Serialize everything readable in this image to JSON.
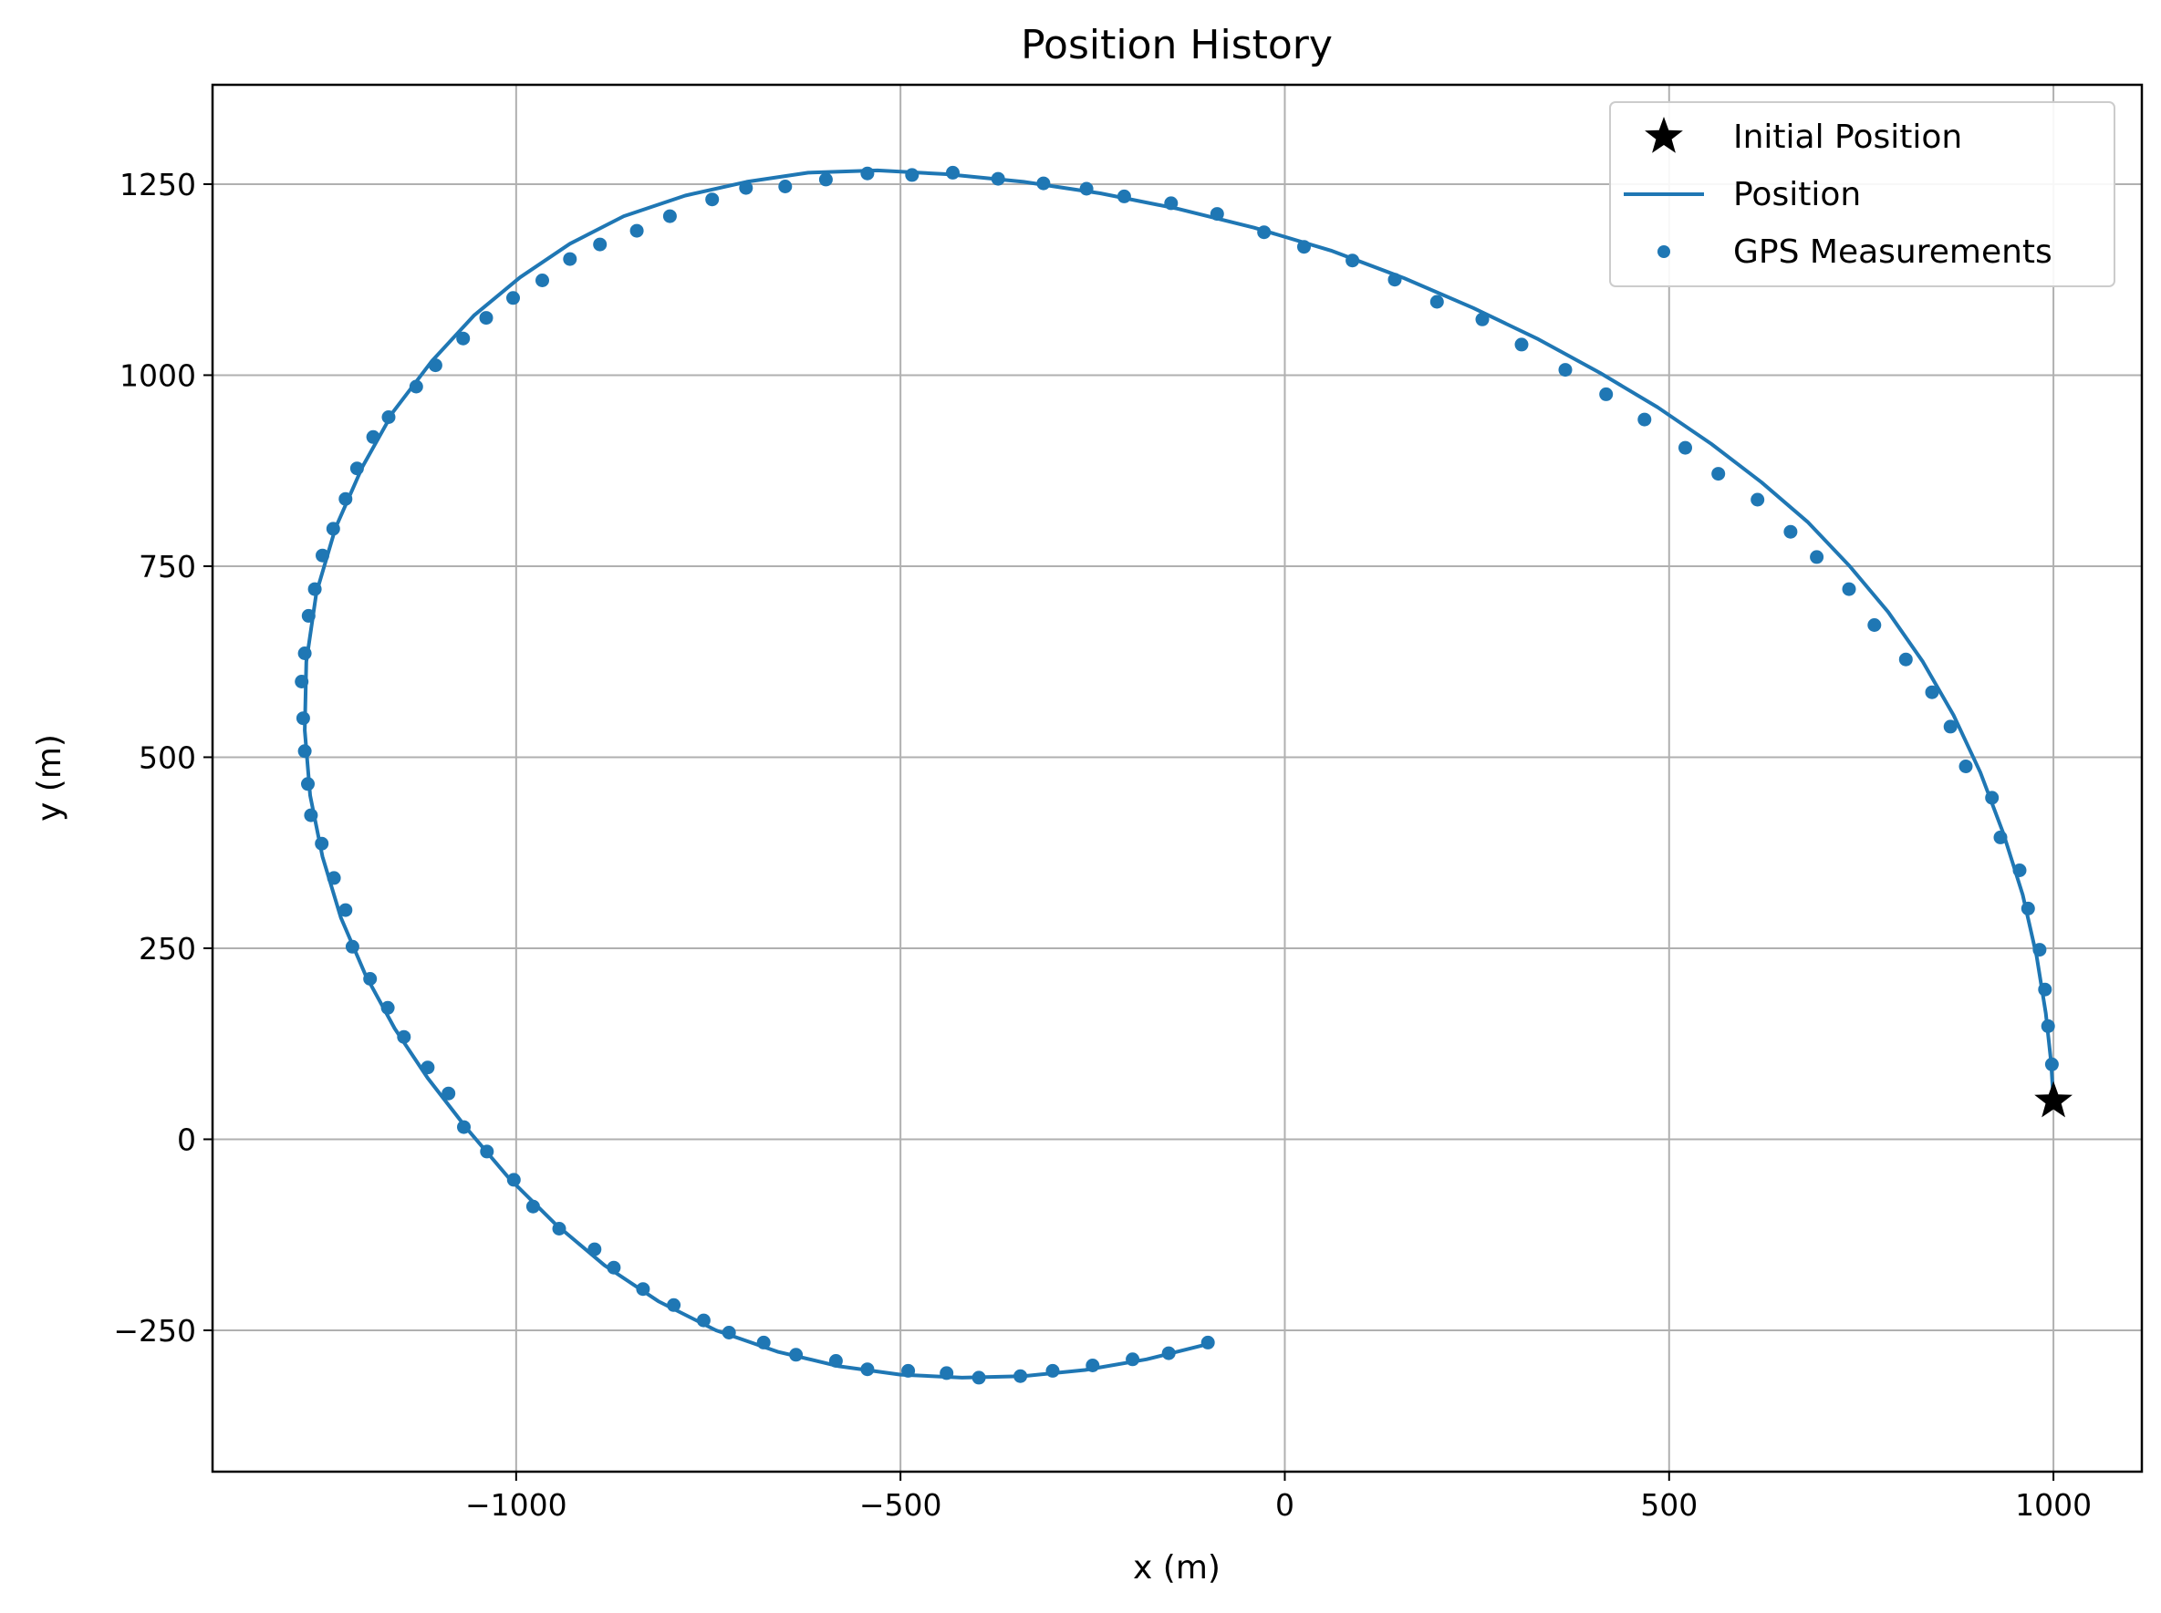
{
  "chart_data": {
    "type": "line",
    "title": "Position History",
    "xlabel": "x (m)",
    "ylabel": "y (m)",
    "xlim": [
      -1395,
      1115
    ],
    "ylim": [
      -435,
      1380
    ],
    "xticks": [
      -1000,
      -500,
      0,
      500,
      1000
    ],
    "yticks": [
      -250,
      0,
      250,
      500,
      750,
      1000,
      1250
    ],
    "xtick_labels": [
      "−1000",
      "−500",
      "0",
      "500",
      "1000"
    ],
    "ytick_labels": [
      "−250",
      "0",
      "250",
      "500",
      "750",
      "1000",
      "1250"
    ],
    "grid": true,
    "legend_position": "top-right",
    "colors": {
      "series": "#1f77b4",
      "marker": "#000000",
      "grid": "#b0b0b0"
    },
    "legend": [
      {
        "label": "Initial Position",
        "kind": "star"
      },
      {
        "label": "Position",
        "kind": "line"
      },
      {
        "label": "GPS Measurements",
        "kind": "dot"
      }
    ],
    "initial_position": {
      "x": 1000,
      "y": 50
    },
    "position_track": {
      "x": [
        1000,
        997,
        990,
        978,
        960,
        935,
        905,
        870,
        830,
        785,
        735,
        680,
        620,
        555,
        485,
        410,
        330,
        245,
        155,
        60,
        -40,
        -140,
        -240,
        -340,
        -440,
        -530,
        -620,
        -700,
        -780,
        -860,
        -930,
        -995,
        -1055,
        -1110,
        -1160,
        -1200,
        -1235,
        -1260,
        -1273,
        -1275,
        -1268,
        -1252,
        -1228,
        -1196,
        -1158,
        -1115,
        -1065,
        -1010,
        -950,
        -885,
        -815,
        -740,
        -660,
        -580,
        -500,
        -420,
        -340,
        -260,
        -180,
        -100
      ],
      "y": [
        50,
        100,
        165,
        240,
        320,
        400,
        480,
        555,
        625,
        690,
        750,
        808,
        860,
        910,
        958,
        1003,
        1047,
        1088,
        1127,
        1163,
        1193,
        1218,
        1238,
        1253,
        1263,
        1268,
        1265,
        1253,
        1235,
        1208,
        1172,
        1128,
        1078,
        1018,
        952,
        880,
        800,
        715,
        625,
        535,
        450,
        370,
        290,
        215,
        145,
        80,
        15,
        -50,
        -110,
        -165,
        -212,
        -250,
        -278,
        -297,
        -308,
        -312,
        -310,
        -302,
        -288,
        -268
      ]
    },
    "gps_measurements": {
      "x": [
        998,
        993,
        989,
        982,
        967,
        956,
        931,
        920,
        886,
        866,
        842,
        808,
        767,
        734,
        692,
        658,
        615,
        564,
        521,
        468,
        418,
        365,
        308,
        257,
        198,
        143,
        88,
        25,
        -27,
        -88,
        -148,
        -209,
        -258,
        -314,
        -373,
        -432,
        -485,
        -543,
        -597,
        -650,
        -701,
        -745,
        -800,
        -843,
        -891,
        -930,
        -966,
        -1004,
        -1039,
        -1069,
        -1105,
        -1130,
        -1166,
        -1186,
        -1207,
        -1222,
        -1238,
        -1252,
        -1262,
        -1270,
        -1275,
        -1279,
        -1277,
        -1275,
        -1271,
        -1267,
        -1253,
        -1237,
        -1222,
        -1213,
        -1190,
        -1167,
        -1146,
        -1115,
        -1088,
        -1068,
        -1038,
        -1003,
        -978,
        -944,
        -898,
        -873,
        -835,
        -795,
        -756,
        -723,
        -678,
        -636,
        -584,
        -543,
        -490,
        -440,
        -398,
        -344,
        -302,
        -250,
        -198,
        -151,
        -100
      ],
      "y": [
        98,
        148,
        196,
        248,
        302,
        352,
        395,
        447,
        488,
        540,
        585,
        628,
        673,
        720,
        762,
        795,
        837,
        871,
        905,
        942,
        975,
        1007,
        1040,
        1073,
        1096,
        1125,
        1150,
        1168,
        1187,
        1211,
        1225,
        1234,
        1244,
        1251,
        1257,
        1265,
        1262,
        1264,
        1256,
        1247,
        1245,
        1230,
        1208,
        1189,
        1171,
        1152,
        1124,
        1101,
        1075,
        1048,
        1013,
        985,
        945,
        919,
        878,
        838,
        799,
        764,
        720,
        685,
        636,
        599,
        551,
        508,
        465,
        424,
        387,
        342,
        300,
        252,
        210,
        172,
        134,
        94,
        60,
        16,
        -16,
        -53,
        -88,
        -117,
        -144,
        -168,
        -196,
        -217,
        -237,
        -253,
        -266,
        -282,
        -290,
        -301,
        -303,
        -306,
        -312,
        -310,
        -303,
        -296,
        -288,
        -280,
        -266
      ]
    }
  }
}
